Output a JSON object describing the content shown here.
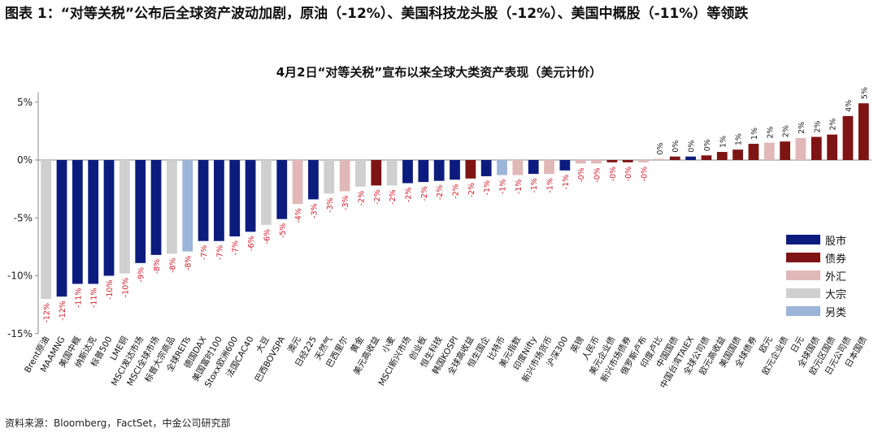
{
  "figure": {
    "title": "图表 1：“对等关税”公布后全球资产波动加剧，原油（-12%）、美国科技龙头股（-12%）、美国中概股（-11%）等领跌",
    "source": "资料来源：Bloomberg，FactSet，中金公司研究部"
  },
  "colors": {
    "股市": "#0c1c7e",
    "债券": "#7e1414",
    "外汇": "#e0b8b8",
    "大宗": "#cfcfcf",
    "另类": "#9cb4d8"
  },
  "chart_data": {
    "type": "bar",
    "title": "4月2日“对等关税”宣布以来全球大类资产表现（美元计价）",
    "xlabel": "",
    "ylabel": "",
    "ylim": [
      -15,
      6
    ],
    "yticks": [
      "5%",
      "0%",
      "-5%",
      "-10%",
      "-15%"
    ],
    "ytick_values": [
      5,
      0,
      -5,
      -10,
      -15
    ],
    "grid": false,
    "legend_position": "right",
    "legend": [
      "股市",
      "债券",
      "外汇",
      "大宗",
      "另类"
    ],
    "categories": [
      "Brent原油",
      "MAAMNG",
      "美国中概",
      "纳斯达克",
      "标普500",
      "LME铜",
      "MSCI发达市场",
      "MSCI全球市场",
      "标普大宗商品",
      "全球REITs",
      "德国DAX",
      "美国富时100",
      "Stoxx欧洲600",
      "法国CAC40",
      "大豆",
      "巴西BOVSPA",
      "澳元",
      "日经225",
      "天然气",
      "巴西里尔",
      "黄金",
      "美元高收益",
      "小麦",
      "MSCI新兴市场",
      "创业板",
      "恒生科技",
      "韩国KOSPI",
      "全球高收益",
      "恒生国企",
      "比特币",
      "美元指数",
      "印度Nifty",
      "新兴市场货币",
      "沪深300",
      "英镑",
      "人民币",
      "美元企业债",
      "新兴市场债券",
      "俄罗斯卢布",
      "印度卢比",
      "中国国债",
      "中国台湾TAIEX",
      "全球公司债",
      "欧元高收益",
      "美国国债",
      "全球债券",
      "欧元",
      "欧元企业债",
      "日元",
      "全球国债",
      "欧元区国债",
      "日元公司债",
      "日本国债"
    ],
    "values": [
      -12.0,
      -11.8,
      -10.7,
      -10.7,
      -10.0,
      -9.8,
      -8.9,
      -8.2,
      -8.1,
      -7.9,
      -7.0,
      -7.0,
      -6.6,
      -6.2,
      -5.6,
      -5.1,
      -3.8,
      -3.4,
      -2.9,
      -2.7,
      -2.3,
      -2.2,
      -2.2,
      -2.0,
      -1.9,
      -1.8,
      -1.7,
      -1.6,
      -1.4,
      -1.3,
      -1.3,
      -1.2,
      -1.2,
      -0.9,
      -0.3,
      -0.3,
      -0.2,
      -0.2,
      -0.2,
      0.1,
      0.3,
      0.3,
      0.4,
      0.7,
      0.9,
      1.4,
      1.5,
      1.6,
      1.9,
      2.0,
      2.2,
      3.8,
      4.9
    ],
    "labels": [
      "-12%",
      "-12%",
      "-11%",
      "-11%",
      "-10%",
      "-10%",
      "-9%",
      "-8%",
      "-8%",
      "-8%",
      "-7%",
      "-7%",
      "-7%",
      "-6%",
      "-6%",
      "-5%",
      "-4%",
      "-3%",
      "-3%",
      "-3%",
      "-2%",
      "-2%",
      "-2%",
      "-2%",
      "-2%",
      "-2%",
      "-2%",
      "-2%",
      "-1%",
      "-1%",
      "-1%",
      "-1%",
      "-1%",
      "-1%",
      "-0%",
      "-0%",
      "-0%",
      "-0%",
      "-0%",
      "0%",
      "0%",
      "0%",
      "0%",
      "1%",
      "1%",
      "1%",
      "2%",
      "2%",
      "2%",
      "2%",
      "2%",
      "4%",
      "5%"
    ],
    "asset_class": [
      "大宗",
      "股市",
      "股市",
      "股市",
      "股市",
      "大宗",
      "股市",
      "股市",
      "大宗",
      "另类",
      "股市",
      "股市",
      "股市",
      "股市",
      "大宗",
      "股市",
      "外汇",
      "股市",
      "大宗",
      "外汇",
      "大宗",
      "债券",
      "大宗",
      "股市",
      "股市",
      "股市",
      "股市",
      "债券",
      "股市",
      "另类",
      "外汇",
      "股市",
      "外汇",
      "股市",
      "外汇",
      "外汇",
      "债券",
      "债券",
      "外汇",
      "外汇",
      "债券",
      "股市",
      "债券",
      "债券",
      "债券",
      "债券",
      "外汇",
      "债券",
      "外汇",
      "债券",
      "债券",
      "债券",
      "债券"
    ]
  }
}
